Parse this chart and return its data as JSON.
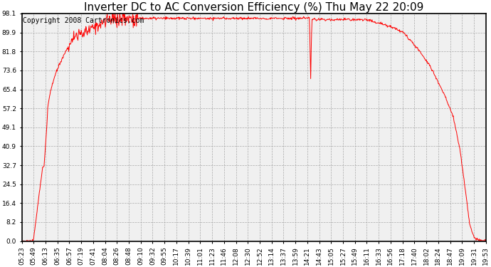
{
  "title": "Inverter DC to AC Conversion Efficiency (%) Thu May 22 20:09",
  "copyright": "Copyright 2008 Cartronics.com",
  "line_color": "#ff0000",
  "bg_color": "#ffffff",
  "plot_bg_color": "#f0f0f0",
  "grid_color": "#aaaaaa",
  "yticks": [
    0.0,
    8.2,
    16.4,
    24.5,
    32.7,
    40.9,
    49.1,
    57.2,
    65.4,
    73.6,
    81.8,
    89.9,
    98.1
  ],
  "xtick_labels": [
    "05:23",
    "05:49",
    "06:13",
    "06:35",
    "06:57",
    "07:19",
    "07:41",
    "08:04",
    "08:26",
    "08:48",
    "09:10",
    "09:32",
    "09:55",
    "10:17",
    "10:39",
    "11:01",
    "11:23",
    "11:46",
    "12:08",
    "12:30",
    "12:52",
    "13:14",
    "13:37",
    "13:59",
    "14:21",
    "14:43",
    "15:05",
    "15:27",
    "15:49",
    "16:11",
    "16:33",
    "16:56",
    "17:18",
    "17:40",
    "18:02",
    "18:24",
    "18:47",
    "19:09",
    "19:31",
    "19:53"
  ],
  "ymin": 0.0,
  "ymax": 98.1,
  "title_fontsize": 11,
  "copyright_fontsize": 7,
  "tick_fontsize": 6.5,
  "line_width": 0.7
}
